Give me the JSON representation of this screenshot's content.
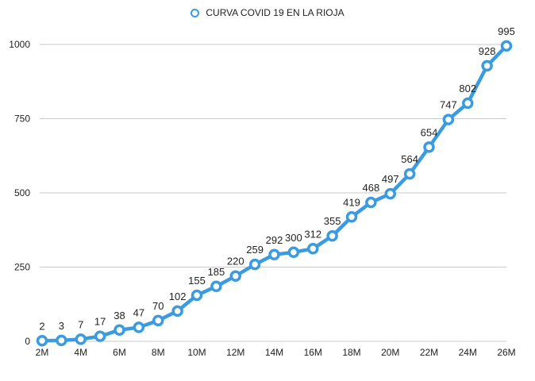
{
  "colors": {
    "series": "#3a9be0",
    "grid": "#c8c8c8",
    "text": "#222222"
  },
  "chart_data": {
    "type": "line",
    "title": "",
    "legend": {
      "position": "top-center"
    },
    "grid": true,
    "x": [
      "2M",
      "3M",
      "4M",
      "5M",
      "6M",
      "7M",
      "8M",
      "9M",
      "10M",
      "11M",
      "12M",
      "13M",
      "14M",
      "15M",
      "16M",
      "17M",
      "18M",
      "19M",
      "20M",
      "21M",
      "22M",
      "23M",
      "24M",
      "25M",
      "26M"
    ],
    "x_tick_labels": [
      "2M",
      "4M",
      "6M",
      "8M",
      "10M",
      "12M",
      "14M",
      "16M",
      "18M",
      "20M",
      "22M",
      "24M",
      "26M"
    ],
    "ylim": [
      0,
      1000
    ],
    "y_ticks": [
      0,
      250,
      500,
      750,
      1000
    ],
    "series": [
      {
        "name": "CURVA COVID 19 EN LA RIOJA",
        "values": [
          2,
          3,
          7,
          17,
          38,
          47,
          70,
          102,
          155,
          185,
          220,
          259,
          292,
          300,
          312,
          355,
          419,
          468,
          497,
          564,
          654,
          747,
          802,
          928,
          995
        ]
      }
    ]
  }
}
